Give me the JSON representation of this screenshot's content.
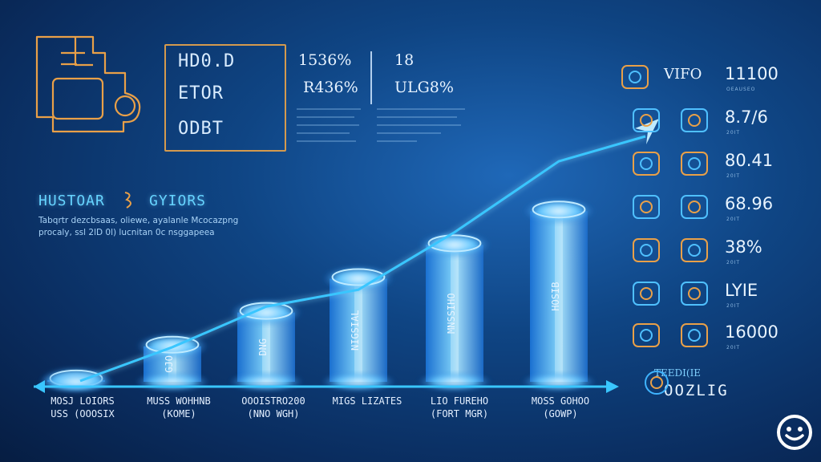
{
  "header_panel": {
    "line1": "HD0.D",
    "line2": "ETOR",
    "line3": "ODBT"
  },
  "top_stats": {
    "col1_a": "1536%",
    "col1_b": "R436%",
    "col2_a": "18",
    "col2_b": "ULG8%"
  },
  "left_heading": {
    "title": "HUSTOAR",
    "title_right": "GYIORS",
    "desc_line1": "Tabqrtr dezcbsaas, oliewe, ayalanle Mcocazpng",
    "desc_line2": "procaly, ssl 2lD 0l) lucnitan 0c nsggapeea"
  },
  "chart_data": {
    "type": "bar",
    "title": "",
    "categories": [
      "MOSJ LOIORS / USS (OOOSIX",
      "MUSS WOHHNB / (KOME)",
      "OOOISTRO200 / (NNO WGH)",
      "MIGS LIZATES",
      "LIO FUREHO / (FORT MGR)",
      "MOSS GOHOO / (GOWP)"
    ],
    "bar_labels": [
      "",
      "GJO",
      "DNG",
      "NIGSIAL",
      "MNSSIHO",
      "HOSIB"
    ],
    "values": [
      1,
      2,
      3,
      4,
      5,
      6
    ],
    "trend_line": [
      0.5,
      1.5,
      2.7,
      3.2,
      4.9,
      7.0
    ],
    "ylim": [
      0,
      7.5
    ],
    "grid": false,
    "colors": {
      "bar": "#3fb4ff",
      "glow": "#bfeaff",
      "line": "#39c6ff",
      "accent": "#e9a048"
    }
  },
  "right_panel": {
    "rows": [
      {
        "icon": "satellite-dish-icon",
        "text": "VIFO",
        "value": "11100",
        "sub": "OEAUSEO"
      },
      {
        "icon": "chat-bubble-icon",
        "text": "",
        "value": "8.7/6",
        "sub": "20IT"
      },
      {
        "icon": "envelope-icon",
        "text": "",
        "value": "80.41",
        "sub": "20IT"
      },
      {
        "icon": "plant-icon",
        "text": "",
        "value": "68.96",
        "sub": "20IT"
      },
      {
        "icon": "pencil-icon",
        "text": "",
        "value": "38%",
        "sub": "20IT"
      },
      {
        "icon": "pill-icon",
        "text": "",
        "value": "LYIE",
        "sub": "20IT"
      },
      {
        "icon": "shield-icon",
        "text": "",
        "value": "16000",
        "sub": "20IT"
      }
    ],
    "footer_line1": "TEEDI(IE",
    "footer_line2": "OOZLIG"
  }
}
